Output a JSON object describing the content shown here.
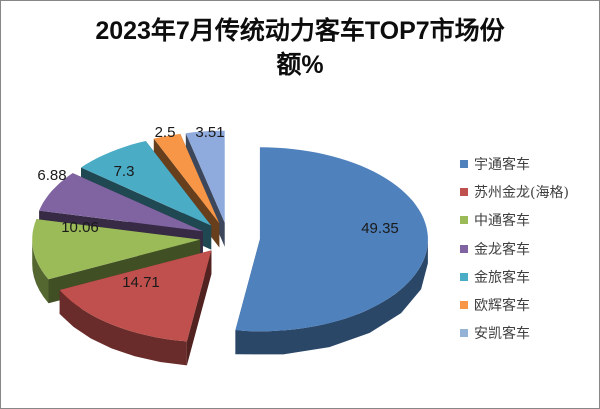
{
  "title": {
    "line1": "2023年7月传统动力客车TOP7市场份",
    "line2": "额%"
  },
  "chart_data": {
    "type": "pie",
    "style": "3d-exploded",
    "title": "2023年7月传统动力客车TOP7市场份额%",
    "categories": [
      "宇通客车",
      "苏州金龙(海格)",
      "中通客车",
      "金龙客车",
      "金旅客车",
      "欧辉客车",
      "安凯客车"
    ],
    "values": [
      49.35,
      14.71,
      10.06,
      6.88,
      7.3,
      2.5,
      3.51
    ],
    "data_labels": [
      "49.35",
      "14.71",
      "10.06",
      "6.88",
      "7.3",
      "2.5",
      "3.51"
    ],
    "colors": [
      "#4f81bd",
      "#c0504d",
      "#9bbb59",
      "#8064a2",
      "#4bacc6",
      "#f79646",
      "#8faadc"
    ],
    "legend_position": "right",
    "grid": false
  },
  "legend": {
    "items": [
      {
        "label": "宇通客车",
        "color": "#4f81bd"
      },
      {
        "label": "苏州金龙(海格)",
        "color": "#c0504d"
      },
      {
        "label": "中通客车",
        "color": "#9bbb59"
      },
      {
        "label": "金龙客车",
        "color": "#8064a2"
      },
      {
        "label": "金旅客车",
        "color": "#4bacc6"
      },
      {
        "label": "欧辉客车",
        "color": "#f79646"
      },
      {
        "label": "安凯客车",
        "color": "#95b3d7"
      }
    ]
  }
}
